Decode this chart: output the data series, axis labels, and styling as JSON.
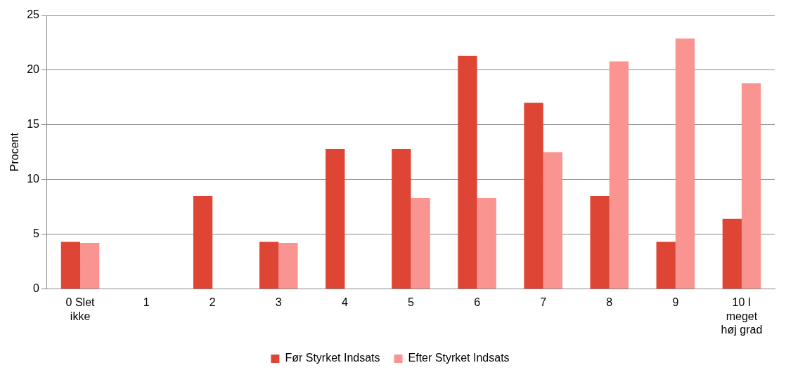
{
  "chart_data": {
    "type": "bar",
    "ylabel": "Procent",
    "categories": [
      "0 Slet ikke",
      "1",
      "2",
      "3",
      "4",
      "5",
      "6",
      "7",
      "8",
      "9",
      "10 I meget høj grad"
    ],
    "series": [
      {
        "name": "Før Styrket Indsats",
        "color": "#de4535",
        "values": [
          4.3,
          0,
          8.5,
          4.3,
          12.8,
          12.8,
          21.3,
          17.0,
          8.5,
          4.3,
          6.4
        ]
      },
      {
        "name": "Efter Styrket Indsats",
        "color": "#f99490",
        "values": [
          4.2,
          0,
          0,
          4.2,
          0,
          8.3,
          8.3,
          12.5,
          20.8,
          22.9,
          18.8
        ]
      }
    ],
    "ylim": [
      0,
      25
    ],
    "yticks": [
      0,
      5,
      10,
      15,
      20,
      25
    ],
    "grid": "y",
    "legend": "bottom"
  }
}
